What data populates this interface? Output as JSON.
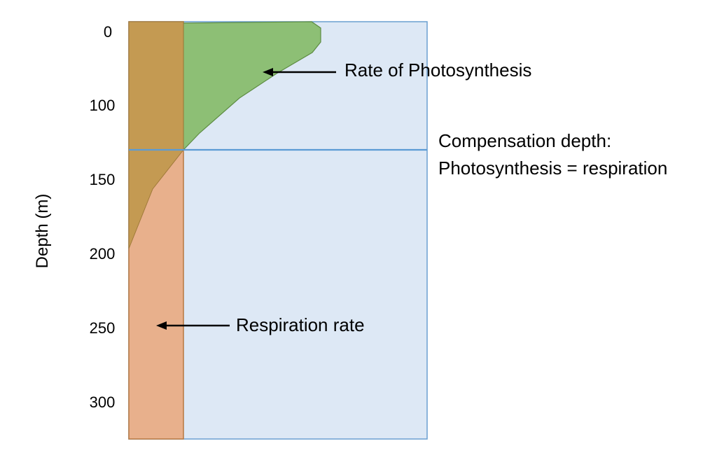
{
  "axis": {
    "label": "Depth (m)",
    "ticks": [
      "0",
      "100",
      "150",
      "200",
      "250",
      "300"
    ]
  },
  "labels": {
    "photosynthesis": "Rate of Photosynthesis",
    "respiration": "Respiration rate",
    "compensation_line1": "Compensation depth:",
    "compensation_line2": "Photosynthesis = respiration"
  },
  "colors": {
    "water": "#dde8f5",
    "water_border": "#6a9fd0",
    "photosynthesis": "#8dbf75",
    "respiration": "#e8b08c",
    "overlap": "#c49a52",
    "compensation_line": "#5b9bd5"
  }
}
